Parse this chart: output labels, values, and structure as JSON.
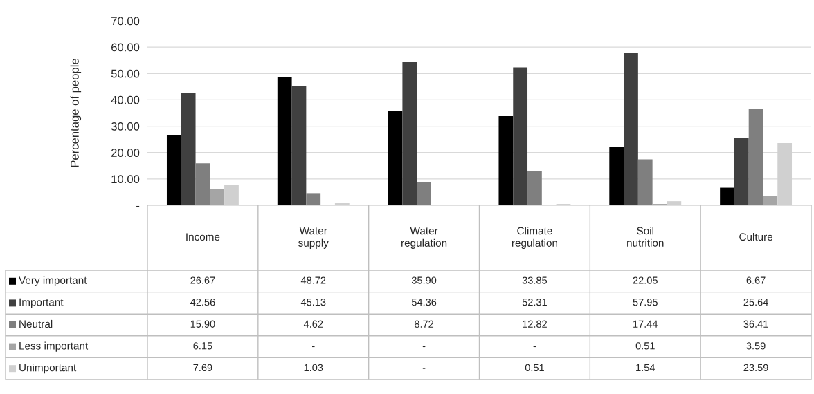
{
  "chart_data": {
    "type": "bar",
    "ylabel": "Percentage of people",
    "categories": [
      "Income",
      "Water supply",
      "Water regulation",
      "Climate regulation",
      "Soil nutrition",
      "Culture"
    ],
    "series": [
      {
        "name": "Very important",
        "color": "#000000",
        "values": [
          26.67,
          48.72,
          35.9,
          33.85,
          22.05,
          6.67
        ],
        "value_labels": [
          "26.67",
          "48.72",
          "35.90",
          "33.85",
          "22.05",
          "6.67"
        ]
      },
      {
        "name": "Important",
        "color": "#404040",
        "values": [
          42.56,
          45.13,
          54.36,
          52.31,
          57.95,
          25.64
        ],
        "value_labels": [
          "42.56",
          "45.13",
          "54.36",
          "52.31",
          "57.95",
          "25.64"
        ]
      },
      {
        "name": "Neutral",
        "color": "#7f7f7f",
        "values": [
          15.9,
          4.62,
          8.72,
          12.82,
          17.44,
          36.41
        ],
        "value_labels": [
          "15.90",
          "4.62",
          "8.72",
          "12.82",
          "17.44",
          "36.41"
        ]
      },
      {
        "name": "Less important",
        "color": "#a5a5a5",
        "values": [
          6.15,
          0,
          0,
          0,
          0.51,
          3.59
        ],
        "value_labels": [
          "6.15",
          "-",
          "-",
          "-",
          "0.51",
          "3.59"
        ]
      },
      {
        "name": "Unimportant",
        "color": "#d0d0d0",
        "values": [
          7.69,
          1.03,
          0,
          0.51,
          1.54,
          23.59
        ],
        "value_labels": [
          "7.69",
          "1.03",
          "-",
          "0.51",
          "1.54",
          "23.59"
        ]
      }
    ],
    "ylim": [
      0,
      70
    ],
    "yticks": [
      {
        "value": 0,
        "label": "-"
      },
      {
        "value": 10,
        "label": "10.00"
      },
      {
        "value": 20,
        "label": "20.00"
      },
      {
        "value": 30,
        "label": "30.00"
      },
      {
        "value": 40,
        "label": "40.00"
      },
      {
        "value": 50,
        "label": "50.00"
      },
      {
        "value": 60,
        "label": "60.00"
      },
      {
        "value": 70,
        "label": "70.00"
      }
    ],
    "grid": "y",
    "legend": "bottom left"
  }
}
